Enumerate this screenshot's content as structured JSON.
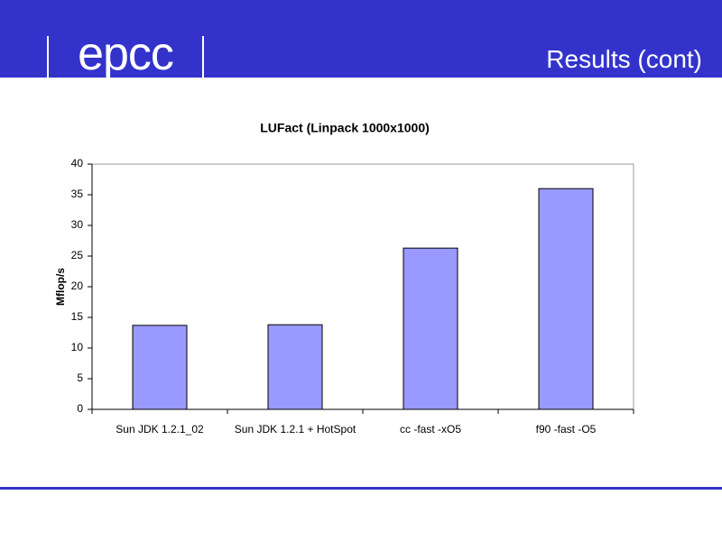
{
  "header": {
    "logo": "epcc",
    "title": "Results (cont)"
  },
  "chart_data": {
    "type": "bar",
    "title": "LUFact (Linpack 1000x1000)",
    "y_label": "Mflop/s",
    "categories": [
      "Sun JDK 1.2.1_02",
      "Sun JDK 1.2.1 + HotSpot",
      "cc -fast -xO5",
      "f90 -fast -O5"
    ],
    "values": [
      13.7,
      13.8,
      26.3,
      36.0
    ],
    "color": "#9999ff",
    "ylim": [
      0,
      40
    ],
    "yticks": [
      0,
      5,
      10,
      15,
      20,
      25,
      30,
      35,
      40
    ],
    "grid": false
  }
}
